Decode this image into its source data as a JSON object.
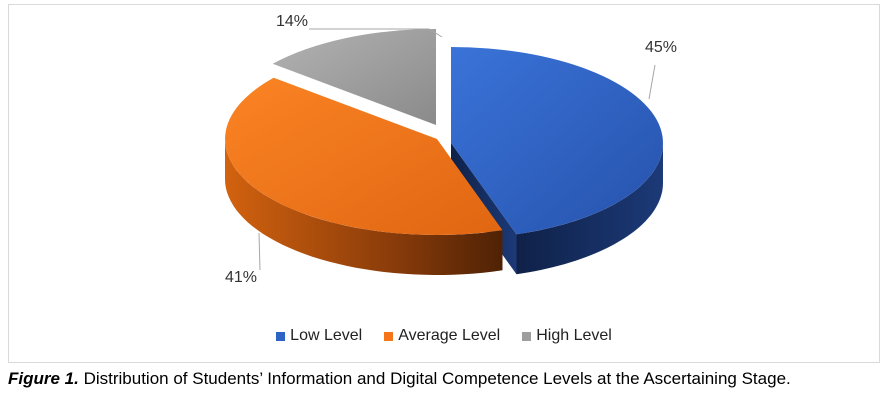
{
  "chart_data": {
    "type": "pie",
    "categories": [
      "Low Level",
      "Average Level",
      "High Level"
    ],
    "values": [
      45,
      41,
      14
    ],
    "value_labels": [
      "45%",
      "41%",
      "14%"
    ],
    "colors": {
      "Low Level": "#2e63c6",
      "Average Level": "#f5761a",
      "High Level": "#9e9e9e"
    },
    "legend_position": "bottom",
    "three_d": true,
    "exploded": true
  },
  "legend": {
    "items": [
      {
        "label": "Low Level",
        "color": "#2e63c6"
      },
      {
        "label": "Average Level",
        "color": "#f5761a"
      },
      {
        "label": "High Level",
        "color": "#9e9e9e"
      }
    ]
  },
  "caption": {
    "label": "Figure 1.",
    "text": " Distribution of Students’ Information and Digital Competence Levels at the Ascertaining Stage."
  }
}
